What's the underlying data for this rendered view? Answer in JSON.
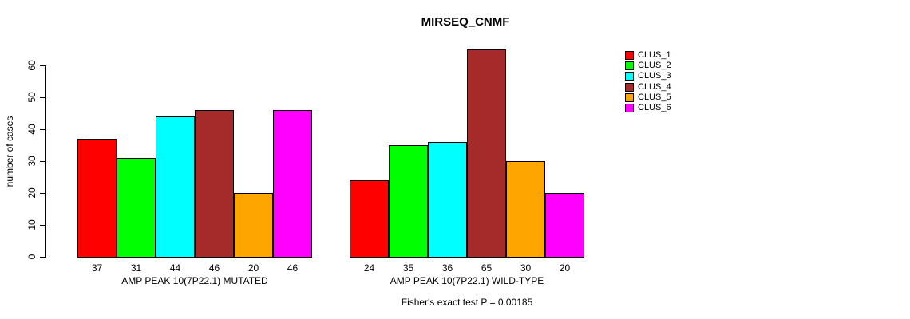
{
  "chart_data": {
    "type": "bar",
    "title": "MIRSEQ_CNMF",
    "ylabel": "number of cases",
    "xlabel": "",
    "ylim": [
      0,
      60
    ],
    "yticks": [
      0,
      10,
      20,
      30,
      40,
      50,
      60
    ],
    "grid": false,
    "legend_position": "right",
    "clusters": [
      {
        "name": "CLUS_1",
        "color": "#FF0000"
      },
      {
        "name": "CLUS_2",
        "color": "#00FF00"
      },
      {
        "name": "CLUS_3",
        "color": "#00FFFF"
      },
      {
        "name": "CLUS_4",
        "color": "#A52A2A"
      },
      {
        "name": "CLUS_5",
        "color": "#FFA500"
      },
      {
        "name": "CLUS_6",
        "color": "#FF00FF"
      }
    ],
    "groups": [
      {
        "label": "AMP PEAK 10(7P22.1) MUTATED",
        "values": [
          37,
          31,
          44,
          46,
          20,
          46
        ],
        "bar_labels": [
          "37",
          "31",
          "44",
          "46",
          "20",
          "46"
        ]
      },
      {
        "label": "AMP PEAK 10(7P22.1) WILD-TYPE",
        "values": [
          24,
          35,
          36,
          65,
          30,
          20
        ],
        "bar_labels": [
          "24",
          "35",
          "36",
          "65",
          "30",
          "20"
        ]
      }
    ],
    "annotation": "Fisher's exact test P = 0.00185"
  }
}
